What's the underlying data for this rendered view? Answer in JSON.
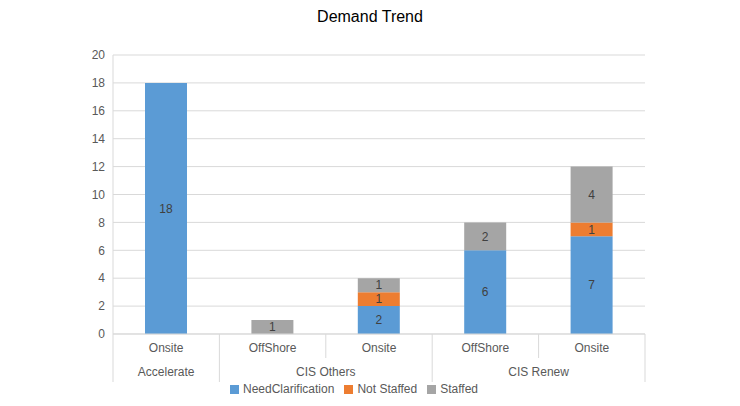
{
  "chart_data": {
    "type": "bar",
    "title": "Demand Trend",
    "categories": [
      "Onsite",
      "OffShore",
      "Onsite",
      "OffShore",
      "Onsite"
    ],
    "category_groups": [
      {
        "label": "Accelerate",
        "count": 1
      },
      {
        "label": "CIS Others",
        "count": 2
      },
      {
        "label": "CIS Renew",
        "count": 2
      }
    ],
    "series": [
      {
        "name": "NeedClarification",
        "color": "#5b9bd5",
        "values": [
          18,
          null,
          2,
          6,
          7
        ]
      },
      {
        "name": "Not Staffed",
        "color": "#ed7d31",
        "values": [
          null,
          null,
          1,
          null,
          1
        ]
      },
      {
        "name": "Staffed",
        "color": "#a5a5a5",
        "values": [
          null,
          1,
          1,
          2,
          4
        ]
      }
    ],
    "ylim": [
      0,
      20
    ],
    "yticks": [
      0,
      2,
      4,
      6,
      8,
      10,
      12,
      14,
      16,
      18,
      20
    ],
    "grid": true,
    "stacked": true,
    "data_labels": true,
    "legend": "bottom"
  }
}
